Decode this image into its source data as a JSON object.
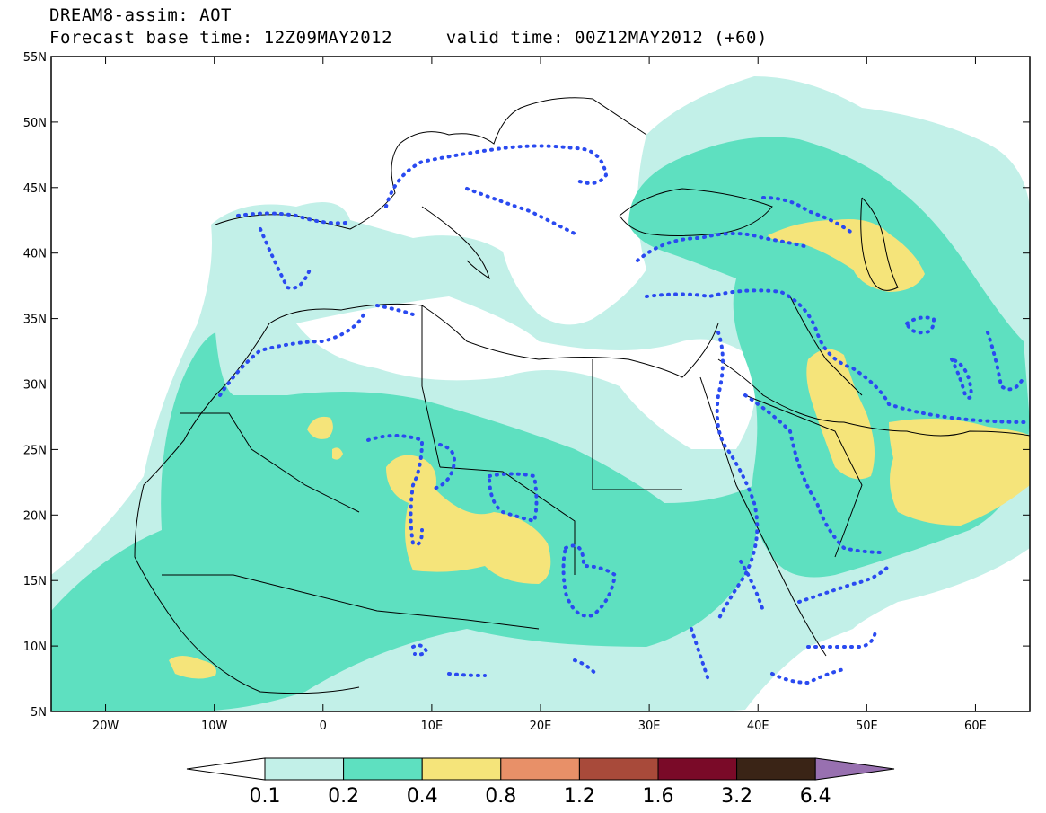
{
  "header": {
    "line1": "DREAM8-assim: AOT",
    "line2": "Forecast base time: 12Z09MAY2012     valid time: 00Z12MAY2012 (+60)"
  },
  "axes": {
    "lat_labels": [
      "55N",
      "50N",
      "45N",
      "40N",
      "35N",
      "30N",
      "25N",
      "20N",
      "15N",
      "10N",
      "5N"
    ],
    "lon_labels": [
      "20W",
      "10W",
      "0",
      "10E",
      "20E",
      "30E",
      "40E",
      "50E",
      "60E"
    ]
  },
  "colorbar": {
    "levels": [
      "0.1",
      "0.2",
      "0.4",
      "0.8",
      "1.2",
      "1.6",
      "3.2",
      "6.4"
    ],
    "colors": {
      "below": "#ffffff",
      "c1": "#c2f0e8",
      "c2": "#5ee0c0",
      "c3": "#f5e47a",
      "c4": "#e89068",
      "c5": "#a84a3a",
      "c6": "#7a0a28",
      "c7": "#3a2416",
      "above": "#9870b0"
    }
  },
  "colors": {
    "land_border": "#000000",
    "dotted_contour": "#2a4af0"
  }
}
